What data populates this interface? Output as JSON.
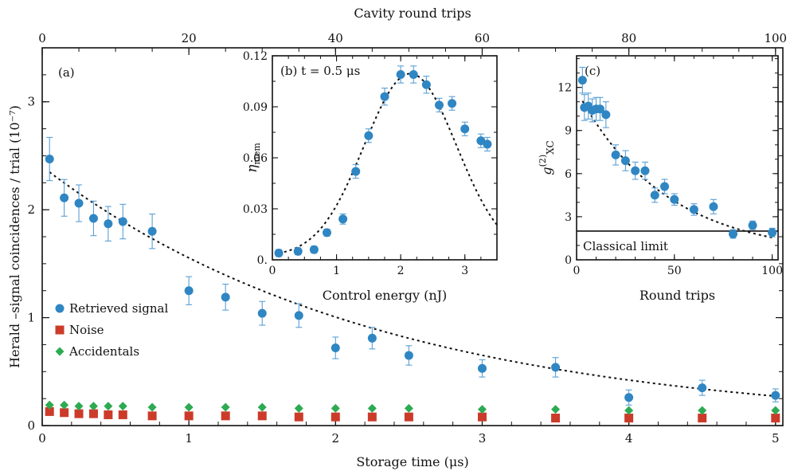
{
  "chart_data": [
    {
      "id": "a",
      "type": "scatter",
      "panel_label": "(a)",
      "xlabel": "Storage time (μs)",
      "ylabel": "Herald –signal coincidences  / trial (10⁻⁷)",
      "top_xlabel": "Cavity round trips",
      "xlim": [
        0,
        5.05
      ],
      "ylim": [
        0,
        3.5
      ],
      "top_xlim": [
        0,
        101
      ],
      "xticks": [
        0,
        1,
        2,
        3,
        4,
        5
      ],
      "yticks": [
        0,
        1,
        2,
        3
      ],
      "top_xticks": [
        0,
        20,
        40,
        60,
        80,
        100
      ],
      "legend_position": "middle-left",
      "series": [
        {
          "name": "Retrieved signal",
          "marker": "circle",
          "color": "#2f86c3",
          "x": [
            0.05,
            0.15,
            0.25,
            0.35,
            0.45,
            0.55,
            0.75,
            1.0,
            1.25,
            1.5,
            1.75,
            2.0,
            2.25,
            2.5,
            3.0,
            3.5,
            4.0,
            4.5,
            5.0
          ],
          "y": [
            2.47,
            2.11,
            2.06,
            1.92,
            1.87,
            1.89,
            1.8,
            1.25,
            1.19,
            1.04,
            1.02,
            0.72,
            0.81,
            0.65,
            0.53,
            0.54,
            0.26,
            0.35,
            0.28
          ],
          "err": [
            0.2,
            0.17,
            0.17,
            0.16,
            0.16,
            0.16,
            0.16,
            0.13,
            0.12,
            0.11,
            0.11,
            0.1,
            0.1,
            0.09,
            0.08,
            0.09,
            0.07,
            0.07,
            0.06
          ]
        },
        {
          "name": "Noise",
          "marker": "square",
          "color": "#cc3b2a",
          "x": [
            0.05,
            0.15,
            0.25,
            0.35,
            0.45,
            0.55,
            0.75,
            1.0,
            1.25,
            1.5,
            1.75,
            2.0,
            2.25,
            2.5,
            3.0,
            3.5,
            4.0,
            4.5,
            5.0
          ],
          "y": [
            0.13,
            0.12,
            0.11,
            0.11,
            0.1,
            0.1,
            0.09,
            0.09,
            0.09,
            0.09,
            0.08,
            0.08,
            0.08,
            0.08,
            0.08,
            0.07,
            0.07,
            0.07,
            0.07
          ]
        },
        {
          "name": "Accidentals",
          "marker": "diamond",
          "color": "#2eaa52",
          "x": [
            0.05,
            0.15,
            0.25,
            0.35,
            0.45,
            0.55,
            0.75,
            1.0,
            1.25,
            1.5,
            1.75,
            2.0,
            2.25,
            2.5,
            3.0,
            3.5,
            4.0,
            4.5,
            5.0
          ],
          "y": [
            0.19,
            0.19,
            0.18,
            0.18,
            0.18,
            0.18,
            0.17,
            0.17,
            0.17,
            0.17,
            0.16,
            0.16,
            0.16,
            0.16,
            0.15,
            0.15,
            0.14,
            0.14,
            0.14
          ]
        }
      ],
      "fit": {
        "style": "dotted",
        "model": "exponential",
        "amplitude": 2.4,
        "tau": 2.3,
        "offset": 0.0
      }
    },
    {
      "id": "b",
      "type": "scatter",
      "panel_label": "(b) t = 0.5 μs",
      "xlabel": "Control energy (nJ)",
      "ylabel": "η_mem",
      "xlim": [
        0,
        3.5
      ],
      "ylim": [
        0,
        0.12
      ],
      "xticks": [
        0,
        1,
        2,
        3
      ],
      "yticks": [
        0,
        0.03,
        0.06,
        0.09,
        0.12
      ],
      "ytick_labels": [
        "0.",
        "0.03",
        "0.06",
        "0.09",
        "0.12"
      ],
      "series": [
        {
          "name": "",
          "marker": "circle",
          "color": "#2f86c3",
          "x": [
            0.1,
            0.4,
            0.65,
            0.85,
            1.1,
            1.3,
            1.5,
            1.75,
            2.0,
            2.2,
            2.4,
            2.6,
            2.8,
            3.0,
            3.25,
            3.35
          ],
          "y": [
            0.004,
            0.005,
            0.006,
            0.016,
            0.024,
            0.052,
            0.073,
            0.096,
            0.109,
            0.109,
            0.103,
            0.091,
            0.092,
            0.077,
            0.07,
            0.068
          ],
          "err": [
            0.002,
            0.002,
            0.002,
            0.002,
            0.003,
            0.004,
            0.004,
            0.005,
            0.005,
            0.005,
            0.005,
            0.004,
            0.004,
            0.004,
            0.004,
            0.004
          ]
        }
      ],
      "fit": {
        "style": "dotted",
        "model": "gaussian",
        "peak": 0.1095,
        "center": 2.15,
        "sigma": 0.72,
        "offset": 0.002
      }
    },
    {
      "id": "c",
      "type": "scatter",
      "panel_label": "(c)",
      "xlabel": "Round trips",
      "ylabel": "g⁽²⁾XC",
      "xlim": [
        0,
        103
      ],
      "ylim": [
        0,
        14.2
      ],
      "xticks": [
        0,
        50,
        100
      ],
      "yticks": [
        0,
        3,
        6,
        9,
        12
      ],
      "annotation": "Classical limit",
      "classical_limit": 2,
      "series": [
        {
          "name": "",
          "marker": "circle",
          "color": "#2f86c3",
          "x": [
            3,
            4,
            6,
            8,
            10,
            12,
            15,
            20,
            25,
            30,
            35,
            40,
            45,
            50,
            60,
            70,
            80,
            90,
            100
          ],
          "y": [
            12.5,
            10.6,
            10.7,
            10.4,
            10.5,
            10.5,
            10.1,
            7.3,
            6.9,
            6.2,
            6.2,
            4.5,
            5.1,
            4.2,
            3.5,
            3.7,
            1.8,
            2.4,
            1.9
          ],
          "err": [
            0.9,
            0.9,
            0.9,
            0.8,
            0.8,
            0.8,
            0.9,
            0.7,
            0.7,
            0.6,
            0.6,
            0.5,
            0.5,
            0.4,
            0.4,
            0.5,
            0.3,
            0.3,
            0.3
          ]
        }
      ],
      "fit": {
        "style": "dotted",
        "model": "exponential",
        "amplitude": 11.5,
        "tau": 45,
        "offset": 0.3
      }
    }
  ]
}
